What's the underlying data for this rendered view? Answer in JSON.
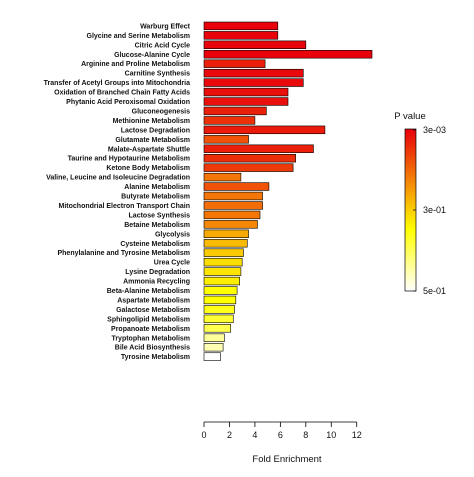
{
  "chart_data": {
    "type": "bar",
    "orientation": "horizontal",
    "categories": [
      "Warburg Effect",
      "Glycine and Serine Metabolism",
      "Citric Acid Cycle",
      "Glucose-Alanine Cycle",
      "Arginine and Proline Metabolism",
      "Carnitine Synthesis",
      "Transfer of Acetyl Groups into Mitochondria",
      "Oxidation of Branched Chain Fatty Acids",
      "Phytanic Acid Peroxisomal Oxidation",
      "Gluconeogenesis",
      "Methionine Metabolism",
      "Lactose Degradation",
      "Glutamate Metabolism",
      "Malate-Aspartate Shuttle",
      "Taurine and Hypotaurine Metabolism",
      "Ketone Body Metabolism",
      "Valine, Leucine and Isoleucine Degradation",
      "Alanine Metabolism",
      "Butyrate Metabolism",
      "Mitochondrial Electron Transport Chain",
      "Lactose Synthesis",
      "Betaine Metabolism",
      "Glycolysis",
      "Cysteine Metabolism",
      "Phenylalanine and Tyrosine Metabolism",
      "Urea Cycle",
      "Lysine Degradation",
      "Ammonia Recycling",
      "Beta-Alanine Metabolism",
      "Aspartate Metabolism",
      "Galactose Metabolism",
      "Sphingolipid Metabolism",
      "Propanoate Metabolism",
      "Tryptophan Metabolism",
      "Bile Acid Biosynthesis",
      "Tyrosine Metabolism"
    ],
    "values": [
      5.8,
      5.8,
      8.0,
      13.2,
      4.8,
      7.8,
      7.8,
      6.6,
      6.6,
      4.9,
      4.0,
      9.5,
      3.5,
      8.6,
      7.2,
      7.0,
      2.9,
      5.1,
      4.6,
      4.6,
      4.4,
      4.2,
      3.5,
      3.4,
      3.1,
      3.0,
      2.9,
      2.8,
      2.6,
      2.5,
      2.4,
      2.3,
      2.1,
      1.6,
      1.5,
      1.3
    ],
    "p_values": [
      0.004,
      0.006,
      0.005,
      0.003,
      0.04,
      0.012,
      0.013,
      0.02,
      0.02,
      0.04,
      0.06,
      0.035,
      0.1,
      0.04,
      0.055,
      0.07,
      0.14,
      0.1,
      0.14,
      0.13,
      0.14,
      0.16,
      0.2,
      0.22,
      0.24,
      0.26,
      0.27,
      0.28,
      0.3,
      0.3,
      0.32,
      0.34,
      0.36,
      0.42,
      0.44,
      0.5
    ],
    "title": "",
    "xlabel": "Fold Enrichment",
    "ylabel": "",
    "xlim": [
      0,
      13.2
    ],
    "xticks": [
      0,
      2,
      4,
      6,
      8,
      10,
      12
    ],
    "xtick_labels": [
      "0",
      "2",
      "4",
      "6",
      "8",
      "10",
      "12"
    ],
    "grid": false,
    "legend": {
      "title": "P value",
      "position": "right",
      "tick_labels": [
        "3e-03",
        "3e-01",
        "5e-01"
      ],
      "color_low": "#e8000b",
      "color_mid": "#ffff00",
      "color_high": "#ffffff"
    },
    "bar_edge_color": "#000000"
  }
}
